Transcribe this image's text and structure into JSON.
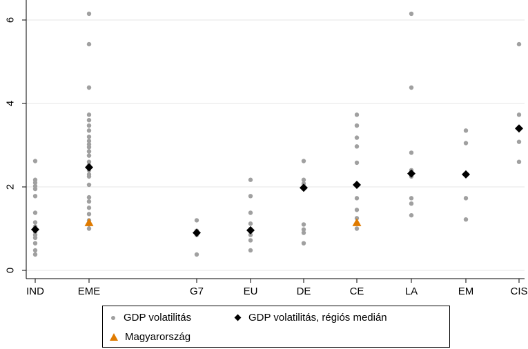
{
  "chart_data": {
    "type": "scatter",
    "categories": [
      "IND",
      "EME",
      "G7",
      "EU",
      "DE",
      "CE",
      "LA",
      "EM",
      "CIS"
    ],
    "y_ticks": [
      0,
      2,
      4,
      6
    ],
    "ylim": [
      -0.15,
      6.4
    ],
    "grid": "horizontal",
    "legend_placement": "bottom",
    "series": [
      {
        "name": "GDP volatilitás",
        "marker": "circle",
        "color": "#a0a0a0",
        "points": {
          "IND": [
            2.62,
            2.17,
            2.1,
            2.02,
            1.95,
            1.78,
            1.38,
            1.15,
            1.05,
            0.98,
            0.92,
            0.85,
            0.78,
            0.65,
            0.48,
            0.38
          ],
          "EME": [
            6.15,
            5.42,
            4.38,
            3.73,
            3.6,
            3.47,
            3.35,
            3.2,
            3.1,
            3.02,
            2.95,
            2.85,
            2.75,
            2.6,
            2.52,
            2.4,
            2.3,
            2.25,
            2.05,
            1.75,
            1.65,
            1.5,
            1.35,
            1.2,
            1.1,
            1.0
          ],
          "G7": [
            1.2,
            0.95,
            0.85,
            0.38
          ],
          "EU": [
            2.17,
            1.78,
            1.38,
            1.12,
            0.98,
            0.85,
            0.72,
            0.48
          ],
          "DE": [
            2.62,
            2.17,
            2.08,
            1.1,
            0.98,
            0.9,
            0.65
          ],
          "CE": [
            3.73,
            3.47,
            3.18,
            2.97,
            2.58,
            2.05,
            1.73,
            1.45,
            1.25,
            1.0
          ],
          "LA": [
            6.15,
            4.38,
            2.82,
            2.4,
            2.25,
            1.73,
            1.6,
            1.32
          ],
          "EM": [
            3.35,
            3.05,
            2.3,
            1.73,
            1.22
          ],
          "CIS": [
            5.42,
            3.73,
            3.4,
            3.08,
            2.6
          ]
        }
      },
      {
        "name": "GDP volatilitás, régiós medián",
        "marker": "diamond",
        "color": "#000000",
        "values": {
          "IND": 0.98,
          "EME": 2.47,
          "G7": 0.9,
          "EU": 0.96,
          "DE": 1.98,
          "CE": 2.05,
          "LA": 2.32,
          "EM": 2.3,
          "CIS": 3.4
        }
      },
      {
        "name": "Magyarország",
        "marker": "triangle",
        "color": "#e07b00",
        "values": {
          "EME": 1.15,
          "CE": 1.15
        }
      }
    ]
  }
}
